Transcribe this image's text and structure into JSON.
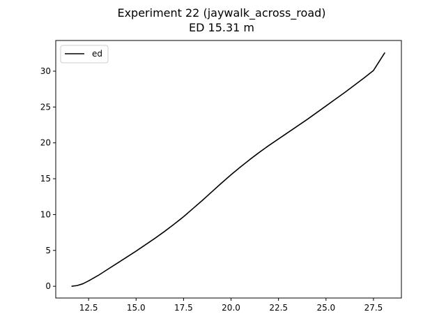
{
  "chart_data": {
    "type": "line",
    "title": "Experiment 22 (jaywalk_across_road)",
    "subtitle": "ED 15.31 m",
    "xlabel": "",
    "ylabel": "",
    "xlim": [
      10.77,
      28.97
    ],
    "ylim": [
      -1.64,
      34.28
    ],
    "grid": false,
    "legend_placement": "top-left",
    "x_ticks": [
      12.5,
      15.0,
      17.5,
      20.0,
      22.5,
      25.0,
      27.5
    ],
    "x_tick_labels": [
      "12.5",
      "15.0",
      "17.5",
      "20.0",
      "22.5",
      "25.0",
      "27.5"
    ],
    "y_ticks": [
      0,
      5,
      10,
      15,
      20,
      25,
      30
    ],
    "y_tick_labels": [
      "0",
      "5",
      "10",
      "15",
      "20",
      "25",
      "30"
    ],
    "series": [
      {
        "name": "ed",
        "color": "#000000",
        "x": [
          11.6,
          11.9,
          12.2,
          12.5,
          13.0,
          13.5,
          14.0,
          14.5,
          15.0,
          15.5,
          16.0,
          16.5,
          17.0,
          17.5,
          18.0,
          18.5,
          19.0,
          19.5,
          20.0,
          20.5,
          21.0,
          21.5,
          22.0,
          22.5,
          23.0,
          23.5,
          24.0,
          24.5,
          25.0,
          25.5,
          26.0,
          26.5,
          27.0,
          27.5,
          28.1
        ],
        "y": [
          0.0,
          0.1,
          0.35,
          0.75,
          1.5,
          2.35,
          3.2,
          4.05,
          4.9,
          5.8,
          6.7,
          7.65,
          8.65,
          9.7,
          10.85,
          12.0,
          13.2,
          14.4,
          15.55,
          16.65,
          17.7,
          18.7,
          19.65,
          20.55,
          21.45,
          22.35,
          23.25,
          24.2,
          25.15,
          26.1,
          27.05,
          28.05,
          29.05,
          30.1,
          32.6
        ]
      }
    ]
  }
}
